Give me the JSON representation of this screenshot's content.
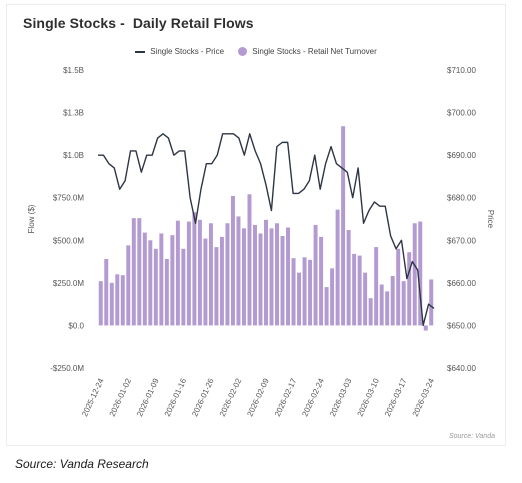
{
  "chart_data": {
    "type": "bar+line",
    "title": "Single Stocks -  Daily Retail Flows",
    "legend": [
      "Single Stocks - Price",
      "Single Stocks - Retail Net Turnover"
    ],
    "legend_position": "top-center",
    "ylabel_left": "Flow ($)",
    "ylabel_right": "Price",
    "left_axis": {
      "min": -250000000,
      "max": 1500000000,
      "ticks": [
        1500000000,
        1250000000,
        1000000000,
        750000000,
        500000000,
        250000000,
        0,
        -250000000
      ],
      "tick_labels": [
        "$1.5B",
        "$1.3B",
        "$1.0B",
        "$750.0M",
        "$500.0M",
        "$250.0M",
        "$0.0",
        "-$250.0M"
      ]
    },
    "right_axis": {
      "min": 640,
      "max": 710,
      "ticks": [
        710,
        700,
        690,
        680,
        670,
        660,
        650,
        640
      ],
      "tick_labels": [
        "$710.00",
        "$700.00",
        "$690.00",
        "$680.00",
        "$670.00",
        "$660.00",
        "$650.00",
        "$640.00"
      ]
    },
    "x_tick_labels": [
      "2025-12-24",
      "2026-01-02",
      "2026-01-09",
      "2026-01-16",
      "2026-01-26",
      "2026-02-02",
      "2026-02-09",
      "2026-02-17",
      "2026-02-24",
      "2026-03-03",
      "2026-03-10",
      "2026-03-17",
      "2026-03-24"
    ],
    "x_tick_index": [
      0,
      5,
      10,
      15,
      20,
      25,
      30,
      35,
      40,
      45,
      50,
      55,
      60
    ],
    "grid": false,
    "series": [
      {
        "name": "Single Stocks - Retail Net Turnover",
        "type": "bar",
        "axis": "left",
        "color": "#b39ad1",
        "values": [
          260000000,
          390000000,
          250000000,
          300000000,
          295000000,
          470000000,
          630000000,
          630000000,
          545000000,
          500000000,
          450000000,
          540000000,
          390000000,
          530000000,
          615000000,
          450000000,
          610000000,
          665000000,
          620000000,
          510000000,
          600000000,
          460000000,
          520000000,
          600000000,
          760000000,
          640000000,
          570000000,
          770000000,
          590000000,
          540000000,
          620000000,
          570000000,
          600000000,
          525000000,
          575000000,
          395000000,
          310000000,
          400000000,
          385000000,
          590000000,
          520000000,
          225000000,
          335000000,
          680000000,
          1170000000,
          560000000,
          420000000,
          410000000,
          310000000,
          160000000,
          460000000,
          240000000,
          200000000,
          290000000,
          450000000,
          260000000,
          430000000,
          600000000,
          610000000,
          -30000000,
          270000000
        ]
      },
      {
        "name": "Single Stocks - Price",
        "type": "line",
        "axis": "right",
        "color": "#2e3545",
        "values": [
          690,
          690,
          688,
          687,
          682,
          684,
          691,
          691,
          686,
          690,
          690,
          694,
          695,
          694,
          690,
          691,
          691,
          680,
          674,
          682,
          688,
          688,
          690,
          695,
          695,
          695,
          694,
          690,
          695,
          691,
          688,
          683,
          677,
          692,
          693,
          693,
          681,
          681,
          682,
          684,
          690,
          682,
          688,
          692,
          688,
          687,
          686,
          680,
          687,
          674,
          677,
          679,
          678,
          678,
          671,
          668,
          670,
          661,
          665,
          663,
          650,
          655,
          654
        ]
      }
    ]
  },
  "source_note": "Source: Vanda",
  "caption": "Source: Vanda Research"
}
